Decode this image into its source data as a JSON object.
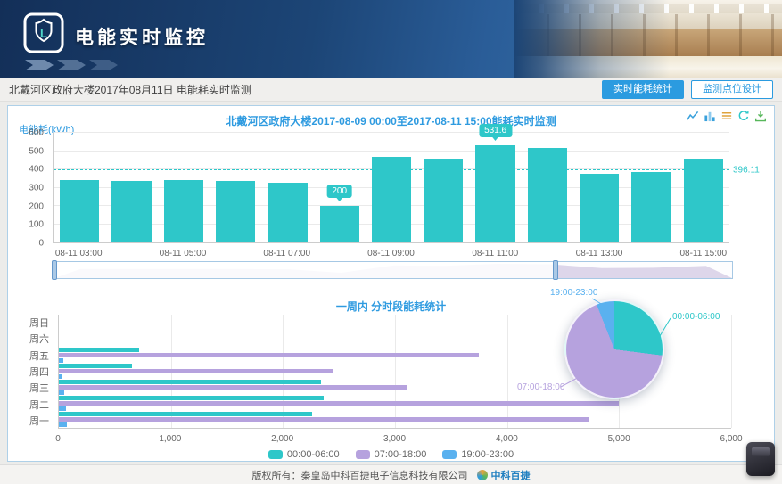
{
  "header": {
    "title": "电能实时监控"
  },
  "breadcrumb": {
    "text": "北戴河区政府大楼2017年08月11日 电能耗实时监测"
  },
  "buttons": {
    "realtime": "实时能耗统计",
    "monitor_points": "监测点位设计"
  },
  "toolbar": {
    "icons": [
      "line-chart",
      "bar-chart",
      "data-view",
      "refresh",
      "save-image"
    ]
  },
  "datazoom": {
    "selected_percent": 74
  },
  "colors": {
    "accent_blue": "#2b9be0",
    "teal": "#2ec7c9",
    "purple": "#b6a2de",
    "blue": "#5ab1ef"
  },
  "chart_data": [
    {
      "type": "bar",
      "title": "北戴河区政府大楼2017-08-09 00:00至2017-08-11 15:00能耗实时监测",
      "ylabel": "电能耗(kWh)",
      "ylim": [
        0,
        600
      ],
      "yticks": [
        0,
        100,
        200,
        300,
        400,
        500,
        600
      ],
      "x_tick_labels": [
        "08-11 03:00",
        "08-11 05:00",
        "08-11 07:00",
        "08-11 09:00",
        "08-11 11:00",
        "08-11 13:00",
        "08-11 15:00"
      ],
      "values": [
        341,
        336,
        341,
        337,
        329,
        200,
        470,
        458,
        531.6,
        518,
        374,
        386,
        460
      ],
      "marked_points": [
        {
          "index": 5,
          "label": "200"
        },
        {
          "index": 8,
          "label": "531.6"
        }
      ],
      "average_line": {
        "value": 396.11,
        "label": "396.11"
      },
      "bar_color": "#2ec7c9",
      "grid": true
    },
    {
      "type": "bar-horizontal",
      "title": "一周内 分时段能耗统计",
      "categories": [
        "周日",
        "周六",
        "周五",
        "周四",
        "周三",
        "周二",
        "周一"
      ],
      "series": [
        {
          "name": "00:00-06:00",
          "color": "#2ec7c9",
          "values": [
            0,
            0,
            715,
            652,
            2340,
            2360,
            2260
          ]
        },
        {
          "name": "07:00-18:00",
          "color": "#b6a2de",
          "values": [
            0,
            0,
            3750,
            2440,
            3100,
            5000,
            4730
          ]
        },
        {
          "name": "19:00-23:00",
          "color": "#5ab1ef",
          "values": [
            0,
            0,
            40,
            30,
            50,
            60,
            70
          ]
        }
      ],
      "xlim": [
        0,
        6000
      ],
      "xticks": [
        "0",
        "1,000",
        "2,000",
        "3,000",
        "4,000",
        "5,000",
        "6,000"
      ],
      "legend_position": "bottom"
    },
    {
      "type": "pie",
      "labels": [
        "00:00-06:00",
        "07:00-18:00",
        "19:00-23:00"
      ],
      "values_pct": [
        27,
        67,
        6
      ],
      "colors": [
        "#2ec7c9",
        "#b6a2de",
        "#5ab1ef"
      ]
    }
  ],
  "footer": {
    "copyright": "版权所有：秦皇岛中科百捷电子信息科技有限公司",
    "logo_text": "中科百捷"
  }
}
